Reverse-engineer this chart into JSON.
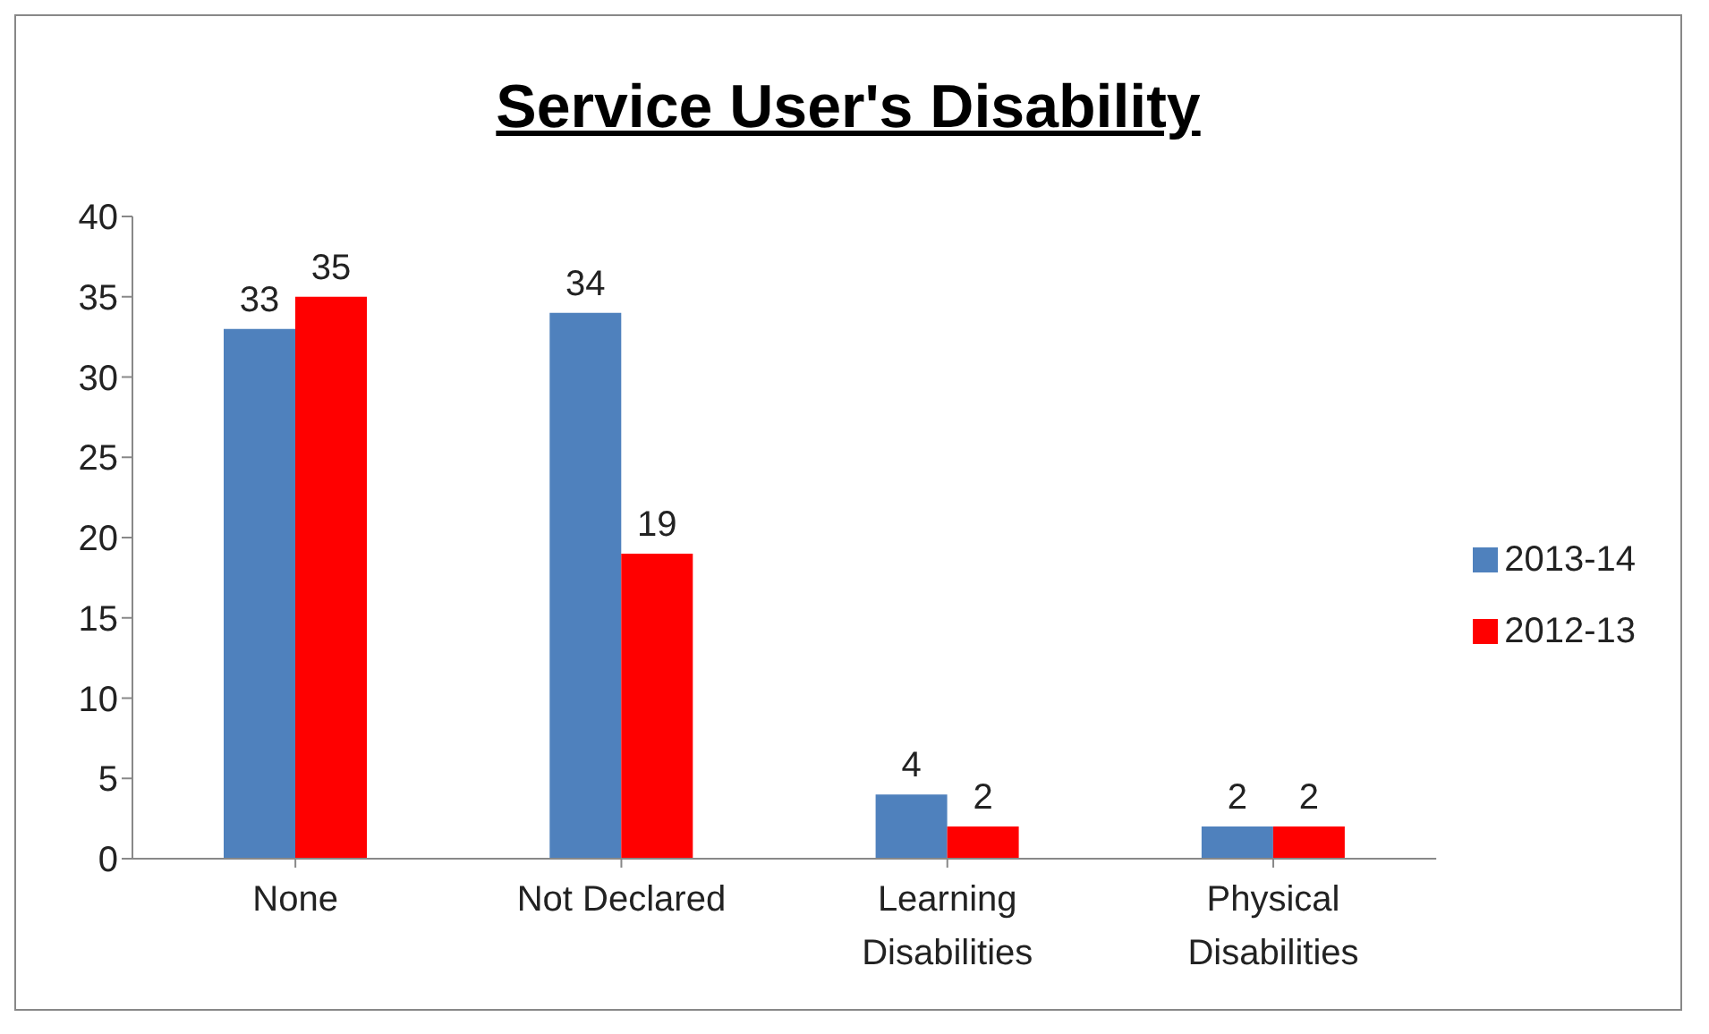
{
  "chart_data": {
    "type": "bar",
    "title": "Service User's Disability",
    "categories": [
      "None",
      "Not Declared",
      "Learning Disabilities",
      "Physical Disabilities"
    ],
    "series": [
      {
        "name": "2013-14",
        "color": "#4f81bd",
        "values": [
          33,
          34,
          4,
          2
        ]
      },
      {
        "name": "2012-13",
        "color": "#ff0000",
        "values": [
          35,
          19,
          2,
          2
        ]
      }
    ],
    "ylim": [
      0,
      40
    ],
    "yticks": [
      0,
      5,
      10,
      15,
      20,
      25,
      30,
      35,
      40
    ],
    "grid": false,
    "legend": "right",
    "data_labels": true
  }
}
